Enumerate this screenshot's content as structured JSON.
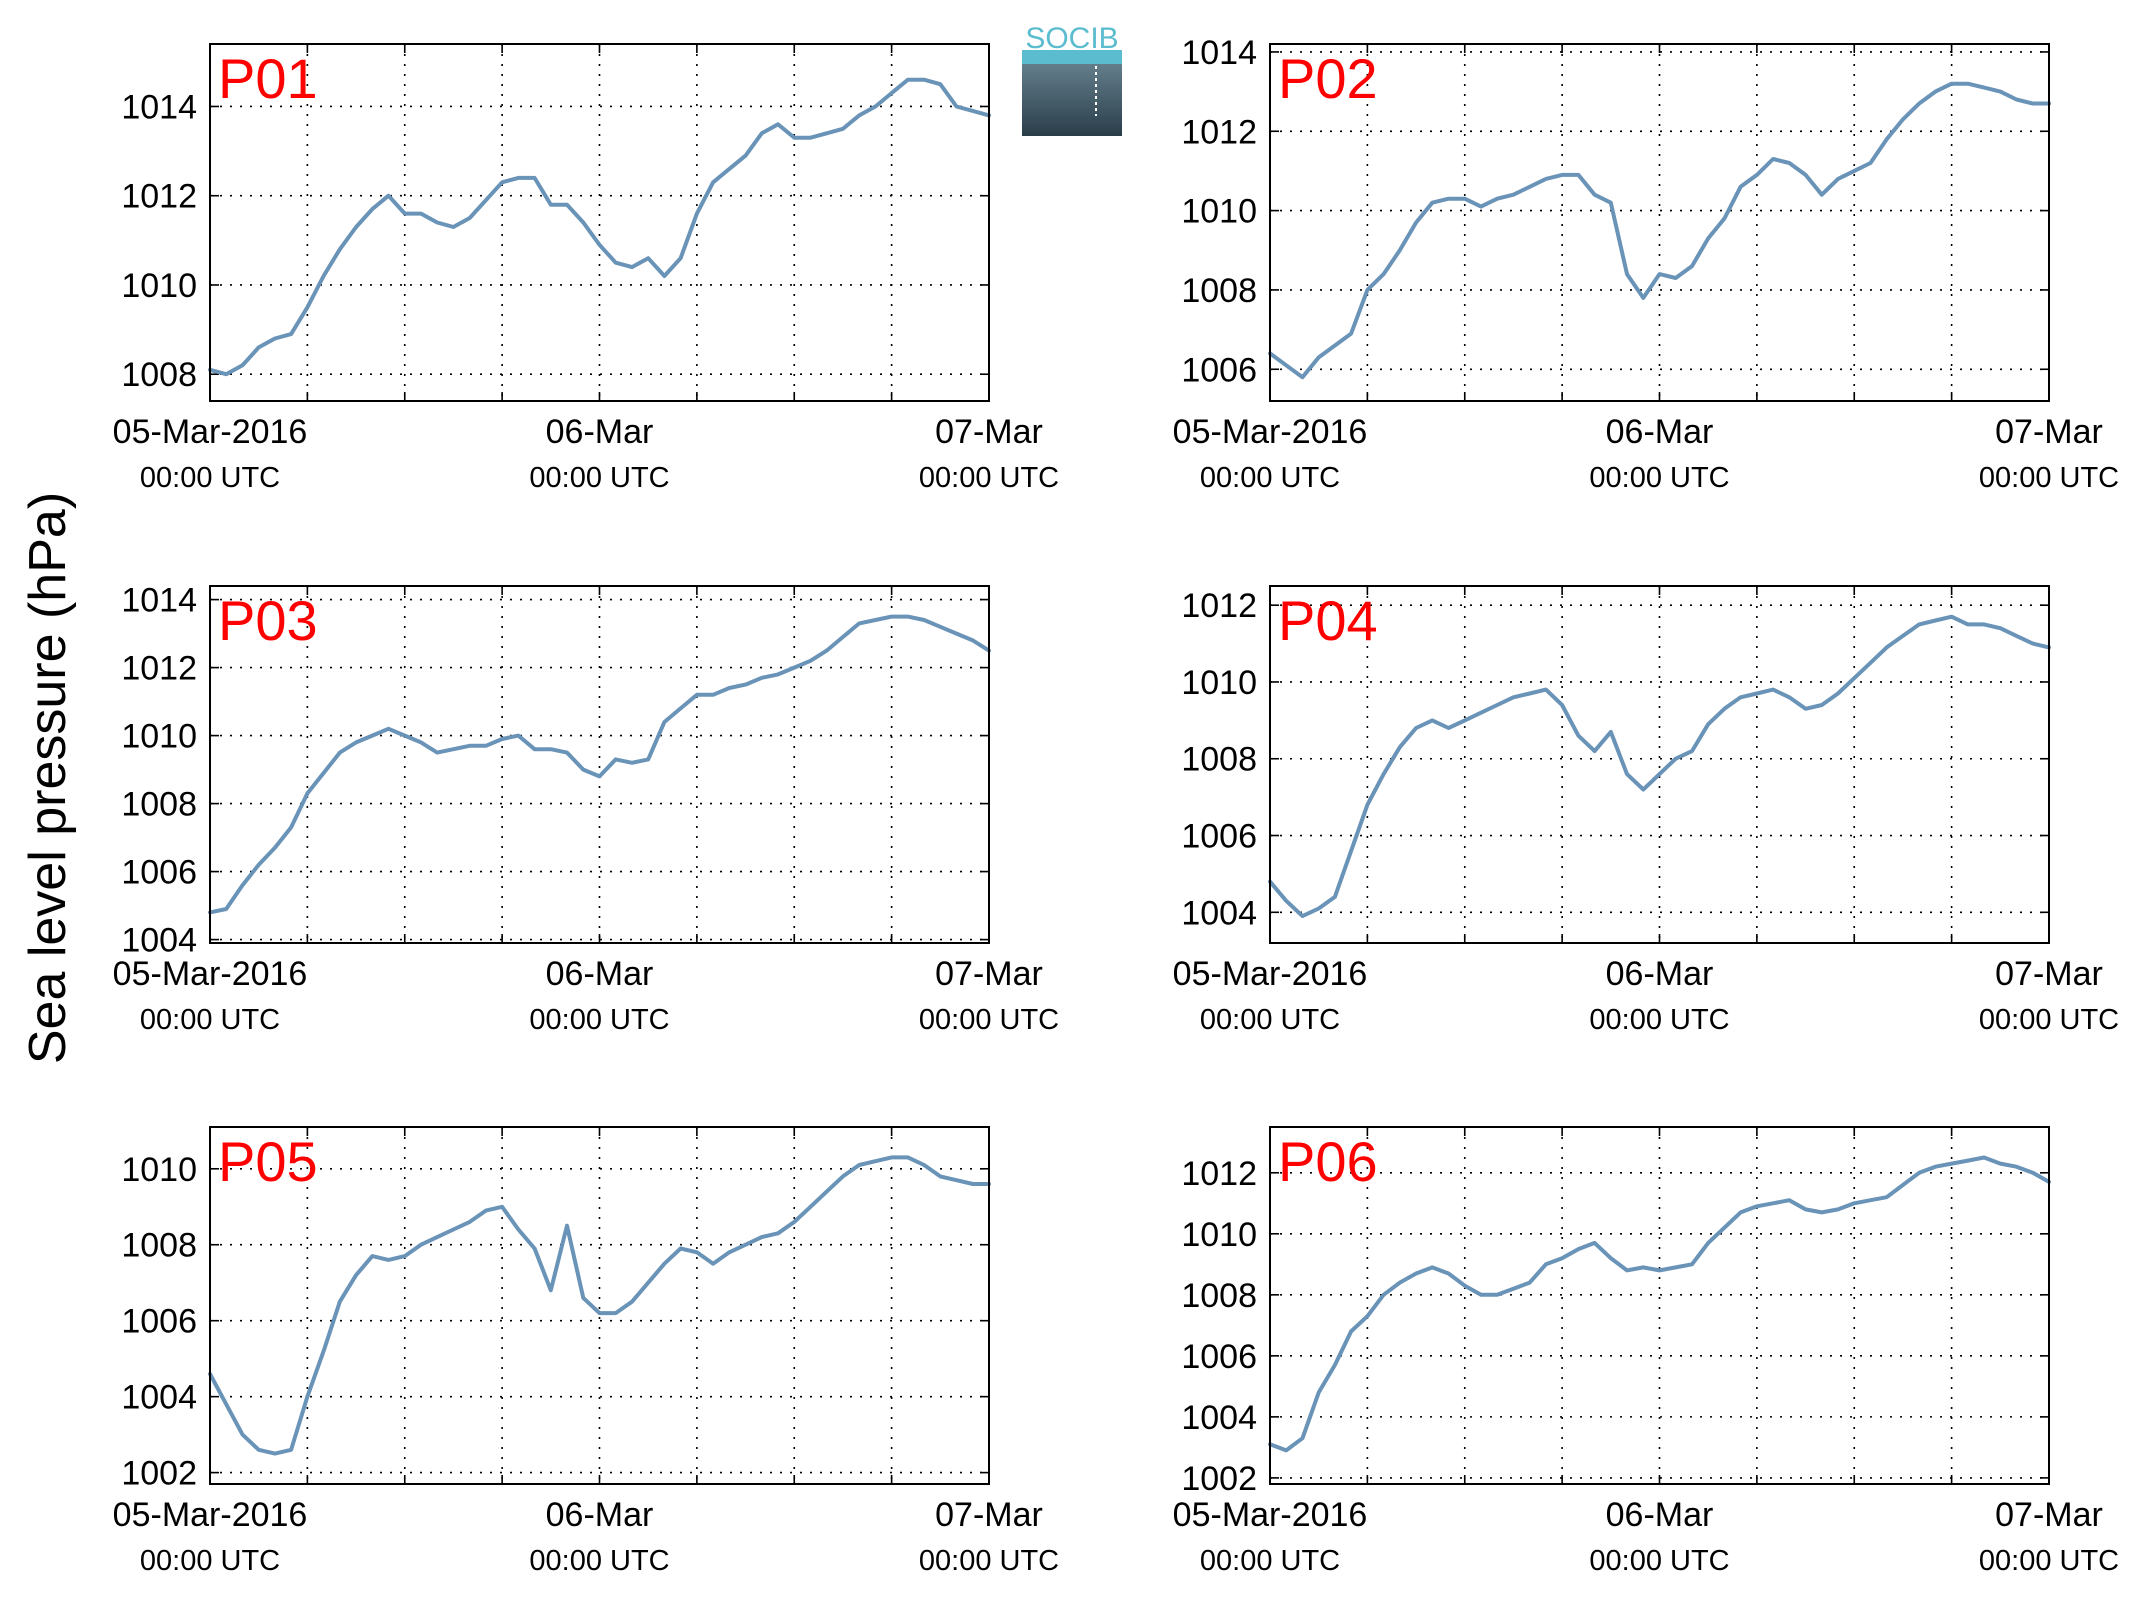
{
  "figure": {
    "ylabel": "Sea level pressure (hPa)",
    "logo_text": "SOCIB"
  },
  "colors": {
    "line": "#6a93b8",
    "panel_label": "#ff0000",
    "logo_top": "#5bbccf",
    "logo_bottom": "#2a3e4a"
  },
  "chart_data": [
    {
      "type": "line",
      "label": "P01",
      "ylim": [
        1007.4,
        1015.4
      ],
      "yticks": [
        1008,
        1010,
        1012,
        1014
      ],
      "grid": true,
      "xticks": [
        {
          "line1": "05-Mar-2016",
          "line2": "00:00 UTC"
        },
        {
          "line1": "06-Mar",
          "line2": "00:00 UTC"
        },
        {
          "line1": "07-Mar",
          "line2": "00:00 UTC"
        }
      ],
      "x": [
        0,
        1,
        2,
        3,
        4,
        5,
        6,
        7,
        8,
        9,
        10,
        11,
        12,
        13,
        14,
        15,
        16,
        17,
        18,
        19,
        20,
        21,
        22,
        23,
        24,
        25,
        26,
        27,
        28,
        29,
        30,
        31,
        32,
        33,
        34,
        35,
        36,
        37,
        38,
        39,
        40,
        41,
        42,
        43,
        44,
        45,
        46,
        47,
        48
      ],
      "y": [
        1008.1,
        1008.0,
        1008.2,
        1008.6,
        1008.8,
        1008.9,
        1009.5,
        1010.2,
        1010.8,
        1011.3,
        1011.7,
        1012.0,
        1011.6,
        1011.6,
        1011.4,
        1011.3,
        1011.5,
        1011.9,
        1012.3,
        1012.4,
        1012.4,
        1011.8,
        1011.8,
        1011.4,
        1010.9,
        1010.5,
        1010.4,
        1010.6,
        1010.2,
        1010.6,
        1011.6,
        1012.3,
        1012.6,
        1012.9,
        1013.4,
        1013.6,
        1013.3,
        1013.3,
        1013.4,
        1013.5,
        1013.8,
        1014.0,
        1014.3,
        1014.6,
        1014.6,
        1014.5,
        1014.0,
        1013.9,
        1013.8
      ]
    },
    {
      "type": "line",
      "label": "P02",
      "ylim": [
        1005.2,
        1014.2
      ],
      "yticks": [
        1006,
        1008,
        1010,
        1012,
        1014
      ],
      "grid": true,
      "xticks": [
        {
          "line1": "05-Mar-2016",
          "line2": "00:00 UTC"
        },
        {
          "line1": "06-Mar",
          "line2": "00:00 UTC"
        },
        {
          "line1": "07-Mar",
          "line2": "00:00 UTC"
        }
      ],
      "x": [
        0,
        1,
        2,
        3,
        4,
        5,
        6,
        7,
        8,
        9,
        10,
        11,
        12,
        13,
        14,
        15,
        16,
        17,
        18,
        19,
        20,
        21,
        22,
        23,
        24,
        25,
        26,
        27,
        28,
        29,
        30,
        31,
        32,
        33,
        34,
        35,
        36,
        37,
        38,
        39,
        40,
        41,
        42,
        43,
        44,
        45,
        46,
        47,
        48
      ],
      "y": [
        1006.4,
        1006.1,
        1005.8,
        1006.3,
        1006.6,
        1006.9,
        1008.0,
        1008.4,
        1009.0,
        1009.7,
        1010.2,
        1010.3,
        1010.3,
        1010.1,
        1010.3,
        1010.4,
        1010.6,
        1010.8,
        1010.9,
        1010.9,
        1010.4,
        1010.2,
        1008.4,
        1007.8,
        1008.4,
        1008.3,
        1008.6,
        1009.3,
        1009.8,
        1010.6,
        1010.9,
        1011.3,
        1011.2,
        1010.9,
        1010.4,
        1010.8,
        1011.0,
        1011.2,
        1011.8,
        1012.3,
        1012.7,
        1013.0,
        1013.2,
        1013.2,
        1013.1,
        1013.0,
        1012.8,
        1012.7,
        1012.7
      ]
    },
    {
      "type": "line",
      "label": "P03",
      "ylim": [
        1003.9,
        1014.4
      ],
      "yticks": [
        1004,
        1006,
        1008,
        1010,
        1012,
        1014
      ],
      "grid": true,
      "xticks": [
        {
          "line1": "05-Mar-2016",
          "line2": "00:00 UTC"
        },
        {
          "line1": "06-Mar",
          "line2": "00:00 UTC"
        },
        {
          "line1": "07-Mar",
          "line2": "00:00 UTC"
        }
      ],
      "x": [
        0,
        1,
        2,
        3,
        4,
        5,
        6,
        7,
        8,
        9,
        10,
        11,
        12,
        13,
        14,
        15,
        16,
        17,
        18,
        19,
        20,
        21,
        22,
        23,
        24,
        25,
        26,
        27,
        28,
        29,
        30,
        31,
        32,
        33,
        34,
        35,
        36,
        37,
        38,
        39,
        40,
        41,
        42,
        43,
        44,
        45,
        46,
        47,
        48
      ],
      "y": [
        1004.8,
        1004.9,
        1005.6,
        1006.2,
        1006.7,
        1007.3,
        1008.3,
        1008.9,
        1009.5,
        1009.8,
        1010.0,
        1010.2,
        1010.0,
        1009.8,
        1009.5,
        1009.6,
        1009.7,
        1009.7,
        1009.9,
        1010.0,
        1009.6,
        1009.6,
        1009.5,
        1009.0,
        1008.8,
        1009.3,
        1009.2,
        1009.3,
        1010.4,
        1010.8,
        1011.2,
        1011.2,
        1011.4,
        1011.5,
        1011.7,
        1011.8,
        1012.0,
        1012.2,
        1012.5,
        1012.9,
        1013.3,
        1013.4,
        1013.5,
        1013.5,
        1013.4,
        1013.2,
        1013.0,
        1012.8,
        1012.5
      ]
    },
    {
      "type": "line",
      "label": "P04",
      "ylim": [
        1003.2,
        1012.5
      ],
      "yticks": [
        1004,
        1006,
        1008,
        1010,
        1012
      ],
      "grid": true,
      "xticks": [
        {
          "line1": "05-Mar-2016",
          "line2": "00:00 UTC"
        },
        {
          "line1": "06-Mar",
          "line2": "00:00 UTC"
        },
        {
          "line1": "07-Mar",
          "line2": "00:00 UTC"
        }
      ],
      "x": [
        0,
        1,
        2,
        3,
        4,
        5,
        6,
        7,
        8,
        9,
        10,
        11,
        12,
        13,
        14,
        15,
        16,
        17,
        18,
        19,
        20,
        21,
        22,
        23,
        24,
        25,
        26,
        27,
        28,
        29,
        30,
        31,
        32,
        33,
        34,
        35,
        36,
        37,
        38,
        39,
        40,
        41,
        42,
        43,
        44,
        45,
        46,
        47,
        48
      ],
      "y": [
        1004.8,
        1004.3,
        1003.9,
        1004.1,
        1004.4,
        1005.6,
        1006.8,
        1007.6,
        1008.3,
        1008.8,
        1009.0,
        1008.8,
        1009.0,
        1009.2,
        1009.4,
        1009.6,
        1009.7,
        1009.8,
        1009.4,
        1008.6,
        1008.2,
        1008.7,
        1007.6,
        1007.2,
        1007.6,
        1008.0,
        1008.2,
        1008.9,
        1009.3,
        1009.6,
        1009.7,
        1009.8,
        1009.6,
        1009.3,
        1009.4,
        1009.7,
        1010.1,
        1010.5,
        1010.9,
        1011.2,
        1011.5,
        1011.6,
        1011.7,
        1011.5,
        1011.5,
        1011.4,
        1011.2,
        1011.0,
        1010.9
      ]
    },
    {
      "type": "line",
      "label": "P05",
      "ylim": [
        1001.7,
        1011.1
      ],
      "yticks": [
        1002,
        1004,
        1006,
        1008,
        1010
      ],
      "grid": true,
      "xticks": [
        {
          "line1": "05-Mar-2016",
          "line2": "00:00 UTC"
        },
        {
          "line1": "06-Mar",
          "line2": "00:00 UTC"
        },
        {
          "line1": "07-Mar",
          "line2": "00:00 UTC"
        }
      ],
      "x": [
        0,
        1,
        2,
        3,
        4,
        5,
        6,
        7,
        8,
        9,
        10,
        11,
        12,
        13,
        14,
        15,
        16,
        17,
        18,
        19,
        20,
        21,
        22,
        23,
        24,
        25,
        26,
        27,
        28,
        29,
        30,
        31,
        32,
        33,
        34,
        35,
        36,
        37,
        38,
        39,
        40,
        41,
        42,
        43,
        44,
        45,
        46,
        47,
        48
      ],
      "y": [
        1004.6,
        1003.8,
        1003.0,
        1002.6,
        1002.5,
        1002.6,
        1004.0,
        1005.2,
        1006.5,
        1007.2,
        1007.7,
        1007.6,
        1007.7,
        1008.0,
        1008.2,
        1008.4,
        1008.6,
        1008.9,
        1009.0,
        1008.4,
        1007.9,
        1006.8,
        1008.5,
        1006.6,
        1006.2,
        1006.2,
        1006.5,
        1007.0,
        1007.5,
        1007.9,
        1007.8,
        1007.5,
        1007.8,
        1008.0,
        1008.2,
        1008.3,
        1008.6,
        1009.0,
        1009.4,
        1009.8,
        1010.1,
        1010.2,
        1010.3,
        1010.3,
        1010.1,
        1009.8,
        1009.7,
        1009.6,
        1009.6
      ]
    },
    {
      "type": "line",
      "label": "P06",
      "ylim": [
        1001.8,
        1013.5
      ],
      "yticks": [
        1002,
        1004,
        1006,
        1008,
        1010,
        1012
      ],
      "grid": true,
      "xticks": [
        {
          "line1": "05-Mar-2016",
          "line2": "00:00 UTC"
        },
        {
          "line1": "06-Mar",
          "line2": "00:00 UTC"
        },
        {
          "line1": "07-Mar",
          "line2": "00:00 UTC"
        }
      ],
      "x": [
        0,
        1,
        2,
        3,
        4,
        5,
        6,
        7,
        8,
        9,
        10,
        11,
        12,
        13,
        14,
        15,
        16,
        17,
        18,
        19,
        20,
        21,
        22,
        23,
        24,
        25,
        26,
        27,
        28,
        29,
        30,
        31,
        32,
        33,
        34,
        35,
        36,
        37,
        38,
        39,
        40,
        41,
        42,
        43,
        44,
        45,
        46,
        47,
        48
      ],
      "y": [
        1003.1,
        1002.9,
        1003.3,
        1004.8,
        1005.7,
        1006.8,
        1007.3,
        1008.0,
        1008.4,
        1008.7,
        1008.9,
        1008.7,
        1008.3,
        1008.0,
        1008.0,
        1008.2,
        1008.4,
        1009.0,
        1009.2,
        1009.5,
        1009.7,
        1009.2,
        1008.8,
        1008.9,
        1008.8,
        1008.9,
        1009.0,
        1009.7,
        1010.2,
        1010.7,
        1010.9,
        1011.0,
        1011.1,
        1010.8,
        1010.7,
        1010.8,
        1011.0,
        1011.1,
        1011.2,
        1011.6,
        1012.0,
        1012.2,
        1012.3,
        1012.4,
        1012.5,
        1012.3,
        1012.2,
        1012.0,
        1011.7
      ]
    }
  ]
}
